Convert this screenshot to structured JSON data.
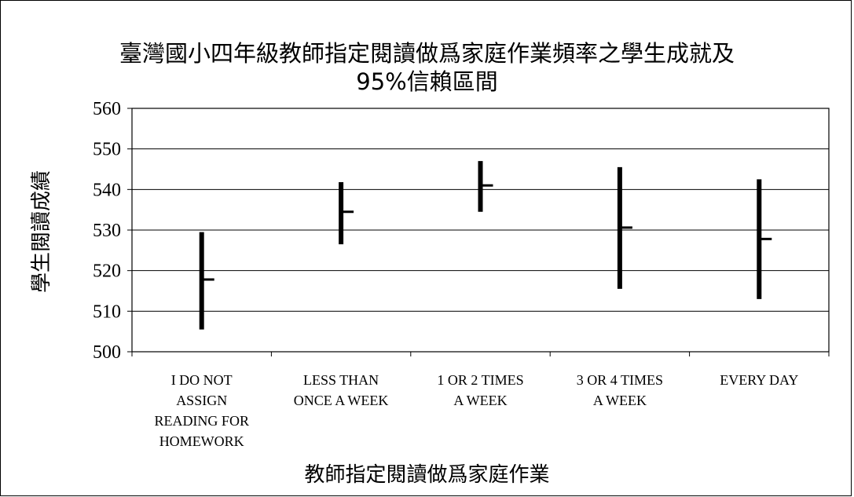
{
  "chart_data": {
    "type": "stock",
    "title": "臺灣國小四年級教師指定閱讀做爲家庭作業頻率之學生成就及",
    "subtitle": "95%信賴區間",
    "xlabel": "教師指定閱讀做爲家庭作業",
    "ylabel": "學生閱讀成績",
    "ylim": [
      500,
      560
    ],
    "yticks": [
      "500",
      "510",
      "520",
      "530",
      "540",
      "550",
      "560"
    ],
    "grid": true,
    "categories": [
      [
        "I DO NOT",
        "ASSIGN",
        "READING FOR",
        "HOMEWORK"
      ],
      [
        "LESS THAN",
        "ONCE A WEEK"
      ],
      [
        "1 OR 2 TIMES",
        "A WEEK"
      ],
      [
        "3 OR 4 TIMES",
        "A WEEK"
      ],
      [
        "EVERY DAY"
      ]
    ],
    "series": [
      {
        "low": 505.5,
        "high": 529.5,
        "mean": 517.8
      },
      {
        "low": 526.5,
        "high": 541.8,
        "mean": 534.5
      },
      {
        "low": 534.5,
        "high": 547.0,
        "mean": 541.0
      },
      {
        "low": 515.5,
        "high": 545.5,
        "mean": 530.6
      },
      {
        "low": 513.0,
        "high": 542.5,
        "mean": 527.8
      }
    ]
  }
}
